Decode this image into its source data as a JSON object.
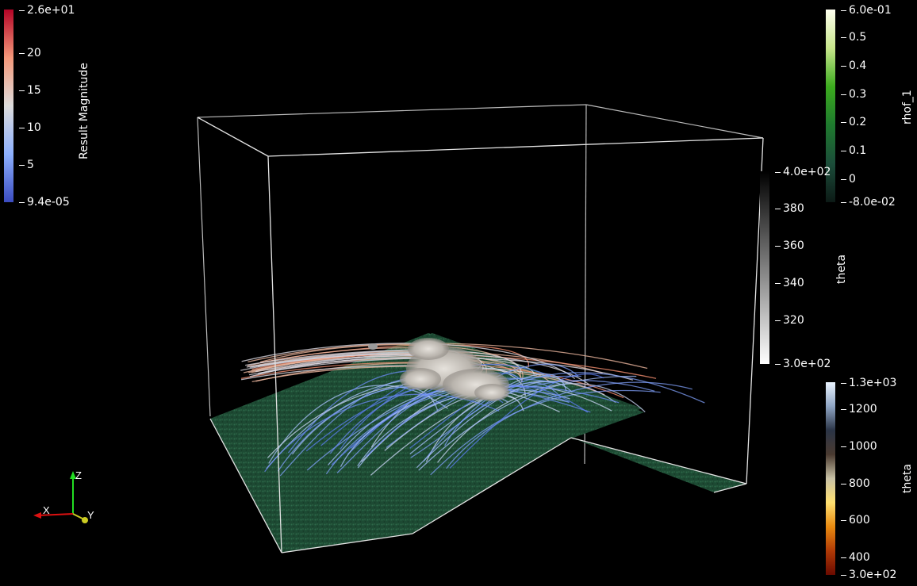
{
  "colorbars": {
    "result_magnitude": {
      "title": "Result Magnitude",
      "ticks": [
        "2.6e+01",
        "20",
        "15",
        "10",
        "5",
        "9.4e-05"
      ],
      "colors": [
        "#b40426",
        "#f4987a",
        "#dddcdc",
        "#8db0fe",
        "#3b4cc0"
      ]
    },
    "rhof_1": {
      "title": "rhof_1",
      "ticks": [
        "6.0e-01",
        "0.5",
        "0.4",
        "0.3",
        "0.2",
        "0.1",
        "0",
        "-8.0e-02"
      ],
      "colors": [
        "#fffff0",
        "#c8e68c",
        "#3cab1e",
        "#1e7a2e",
        "#1c4d3a",
        "#0c1a16"
      ]
    },
    "theta_gray": {
      "title": "theta",
      "ticks": [
        "4.0e+02",
        "380",
        "360",
        "340",
        "320",
        "3.0e+02"
      ],
      "colors": [
        "#000000",
        "#555555",
        "#aaaaaa",
        "#ffffff"
      ]
    },
    "theta_fire": {
      "title": "theta",
      "ticks": [
        "1.3e+03",
        "1200",
        "1000",
        "800",
        "600",
        "400",
        "3.0e+02"
      ],
      "colors": [
        "#eaf4ff",
        "#8fa5c4",
        "#2a3446",
        "#4a3a30",
        "#c9c2a6",
        "#ffe070",
        "#e88a10",
        "#b03a06",
        "#6a0a00"
      ]
    }
  },
  "axes_widget": {
    "x": "X",
    "y": "Y",
    "z": "Z"
  },
  "scene": {
    "terrain_color": "#1e4a34",
    "box_color": "#dcdcdc",
    "smoke_color": "#d8d4cf"
  }
}
